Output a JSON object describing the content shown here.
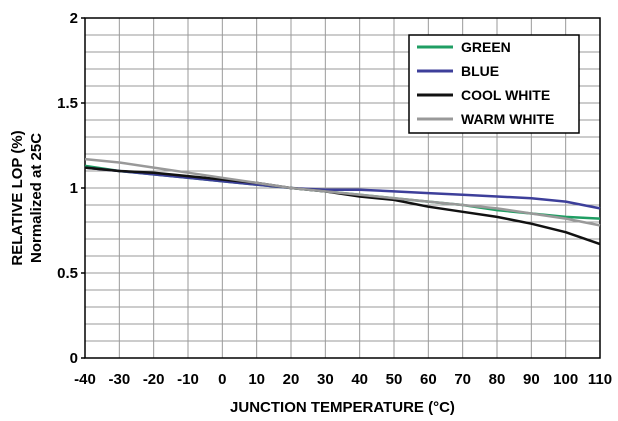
{
  "chart_data": {
    "type": "line",
    "xlabel": "JUNCTION TEMPERATURE (°C)",
    "ylabel_lines": [
      "RELATIVE LOP (%)",
      "Normalized at 25C"
    ],
    "xlim": [
      -40,
      110
    ],
    "ylim": [
      0,
      2
    ],
    "x_ticks": [
      -40,
      -30,
      -20,
      -10,
      0,
      10,
      20,
      30,
      40,
      50,
      60,
      70,
      80,
      90,
      100,
      110
    ],
    "y_ticks": [
      0,
      0.5,
      1,
      1.5,
      2
    ],
    "x_tick_labels": [
      "-40",
      "-30",
      "-20",
      "-10",
      "0",
      "10",
      "20",
      "30",
      "40",
      "50",
      "60",
      "70",
      "80",
      "90",
      "100",
      "110"
    ],
    "y_tick_labels": [
      "0",
      "0.5",
      "1",
      "1.5",
      "2"
    ],
    "grid": true,
    "legend_position": "top-right",
    "x": [
      -40,
      -30,
      -20,
      -10,
      0,
      10,
      20,
      30,
      40,
      50,
      60,
      70,
      80,
      90,
      100,
      110
    ],
    "series": [
      {
        "name": "GREEN",
        "color": "#1f9e63",
        "values": [
          1.13,
          1.1,
          1.08,
          1.06,
          1.04,
          1.02,
          1.0,
          0.98,
          0.96,
          0.94,
          0.92,
          0.9,
          0.87,
          0.85,
          0.83,
          0.82
        ]
      },
      {
        "name": "BLUE",
        "color": "#3d3f9a",
        "values": [
          1.12,
          1.1,
          1.08,
          1.06,
          1.04,
          1.02,
          1.0,
          0.99,
          0.99,
          0.98,
          0.97,
          0.96,
          0.95,
          0.94,
          0.92,
          0.88
        ]
      },
      {
        "name": "COOL WHITE",
        "color": "#111111",
        "values": [
          1.12,
          1.1,
          1.09,
          1.07,
          1.05,
          1.03,
          1.0,
          0.98,
          0.95,
          0.93,
          0.89,
          0.86,
          0.83,
          0.79,
          0.74,
          0.67
        ]
      },
      {
        "name": "WARM WHITE",
        "color": "#999999",
        "values": [
          1.17,
          1.15,
          1.12,
          1.09,
          1.06,
          1.03,
          1.0,
          0.98,
          0.96,
          0.94,
          0.92,
          0.9,
          0.88,
          0.85,
          0.82,
          0.78
        ]
      }
    ]
  }
}
